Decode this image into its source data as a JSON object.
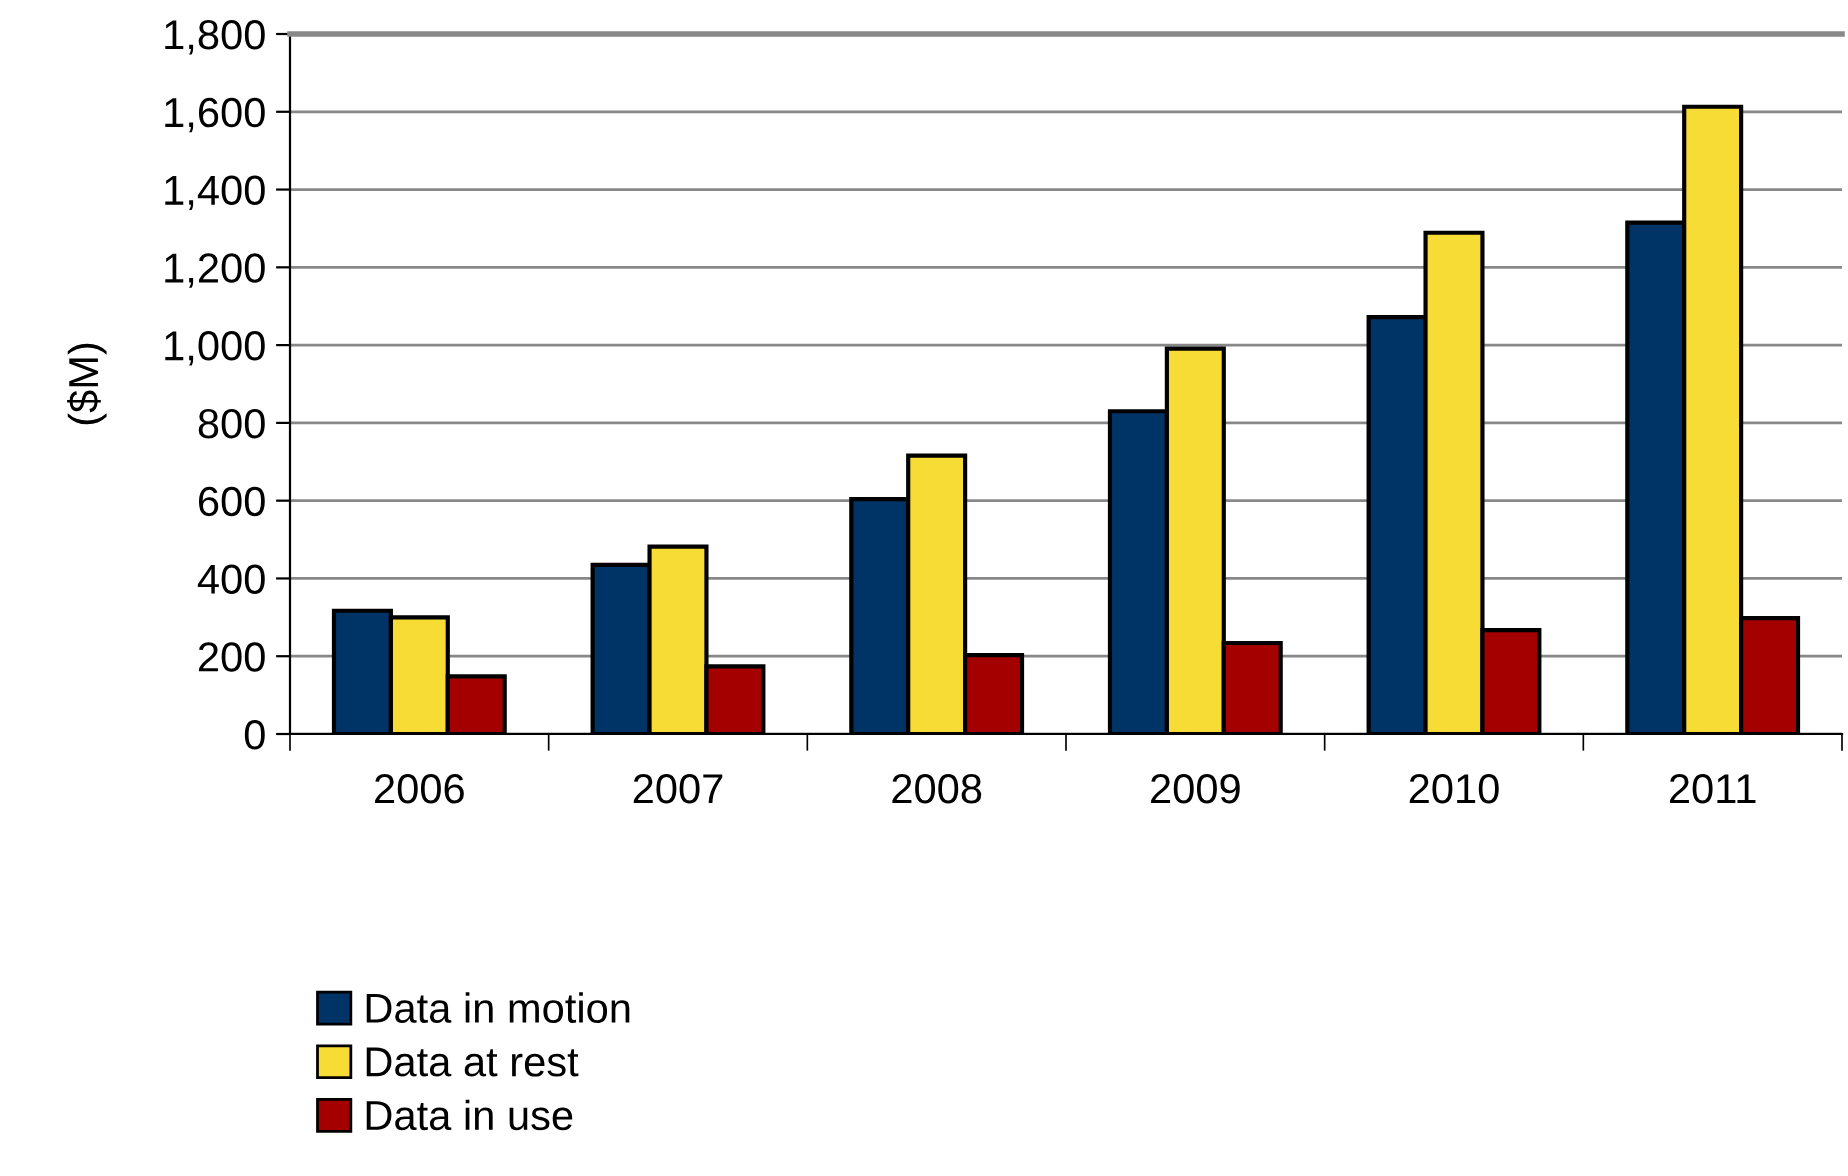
{
  "chart_data": {
    "type": "bar",
    "ylabel": "($M)",
    "categories": [
      "2006",
      "2007",
      "2008",
      "2009",
      "2010",
      "2011"
    ],
    "series": [
      {
        "name": "Data in motion",
        "color": "#003366",
        "values": [
          317,
          435,
          604,
          830,
          1072,
          1315
        ]
      },
      {
        "name": "Data at rest",
        "color": "#f7dc35",
        "values": [
          300,
          482,
          716,
          991,
          1289,
          1613
        ]
      },
      {
        "name": "Data in use",
        "color": "#a50000",
        "values": [
          148,
          174,
          203,
          234,
          267,
          298
        ]
      }
    ],
    "ylim": [
      0,
      1800
    ],
    "yticks": [
      {
        "value": 0,
        "label": "0"
      },
      {
        "value": 200,
        "label": "200"
      },
      {
        "value": 400,
        "label": "400"
      },
      {
        "value": 600,
        "label": "600"
      },
      {
        "value": 800,
        "label": "800"
      },
      {
        "value": 1000,
        "label": "1,000"
      },
      {
        "value": 1200,
        "label": "1,200"
      },
      {
        "value": 1400,
        "label": "1,400"
      },
      {
        "value": 1600,
        "label": "1,600"
      },
      {
        "value": 1800,
        "label": "1,800"
      }
    ],
    "grid": "y",
    "legend": "bottom left"
  }
}
